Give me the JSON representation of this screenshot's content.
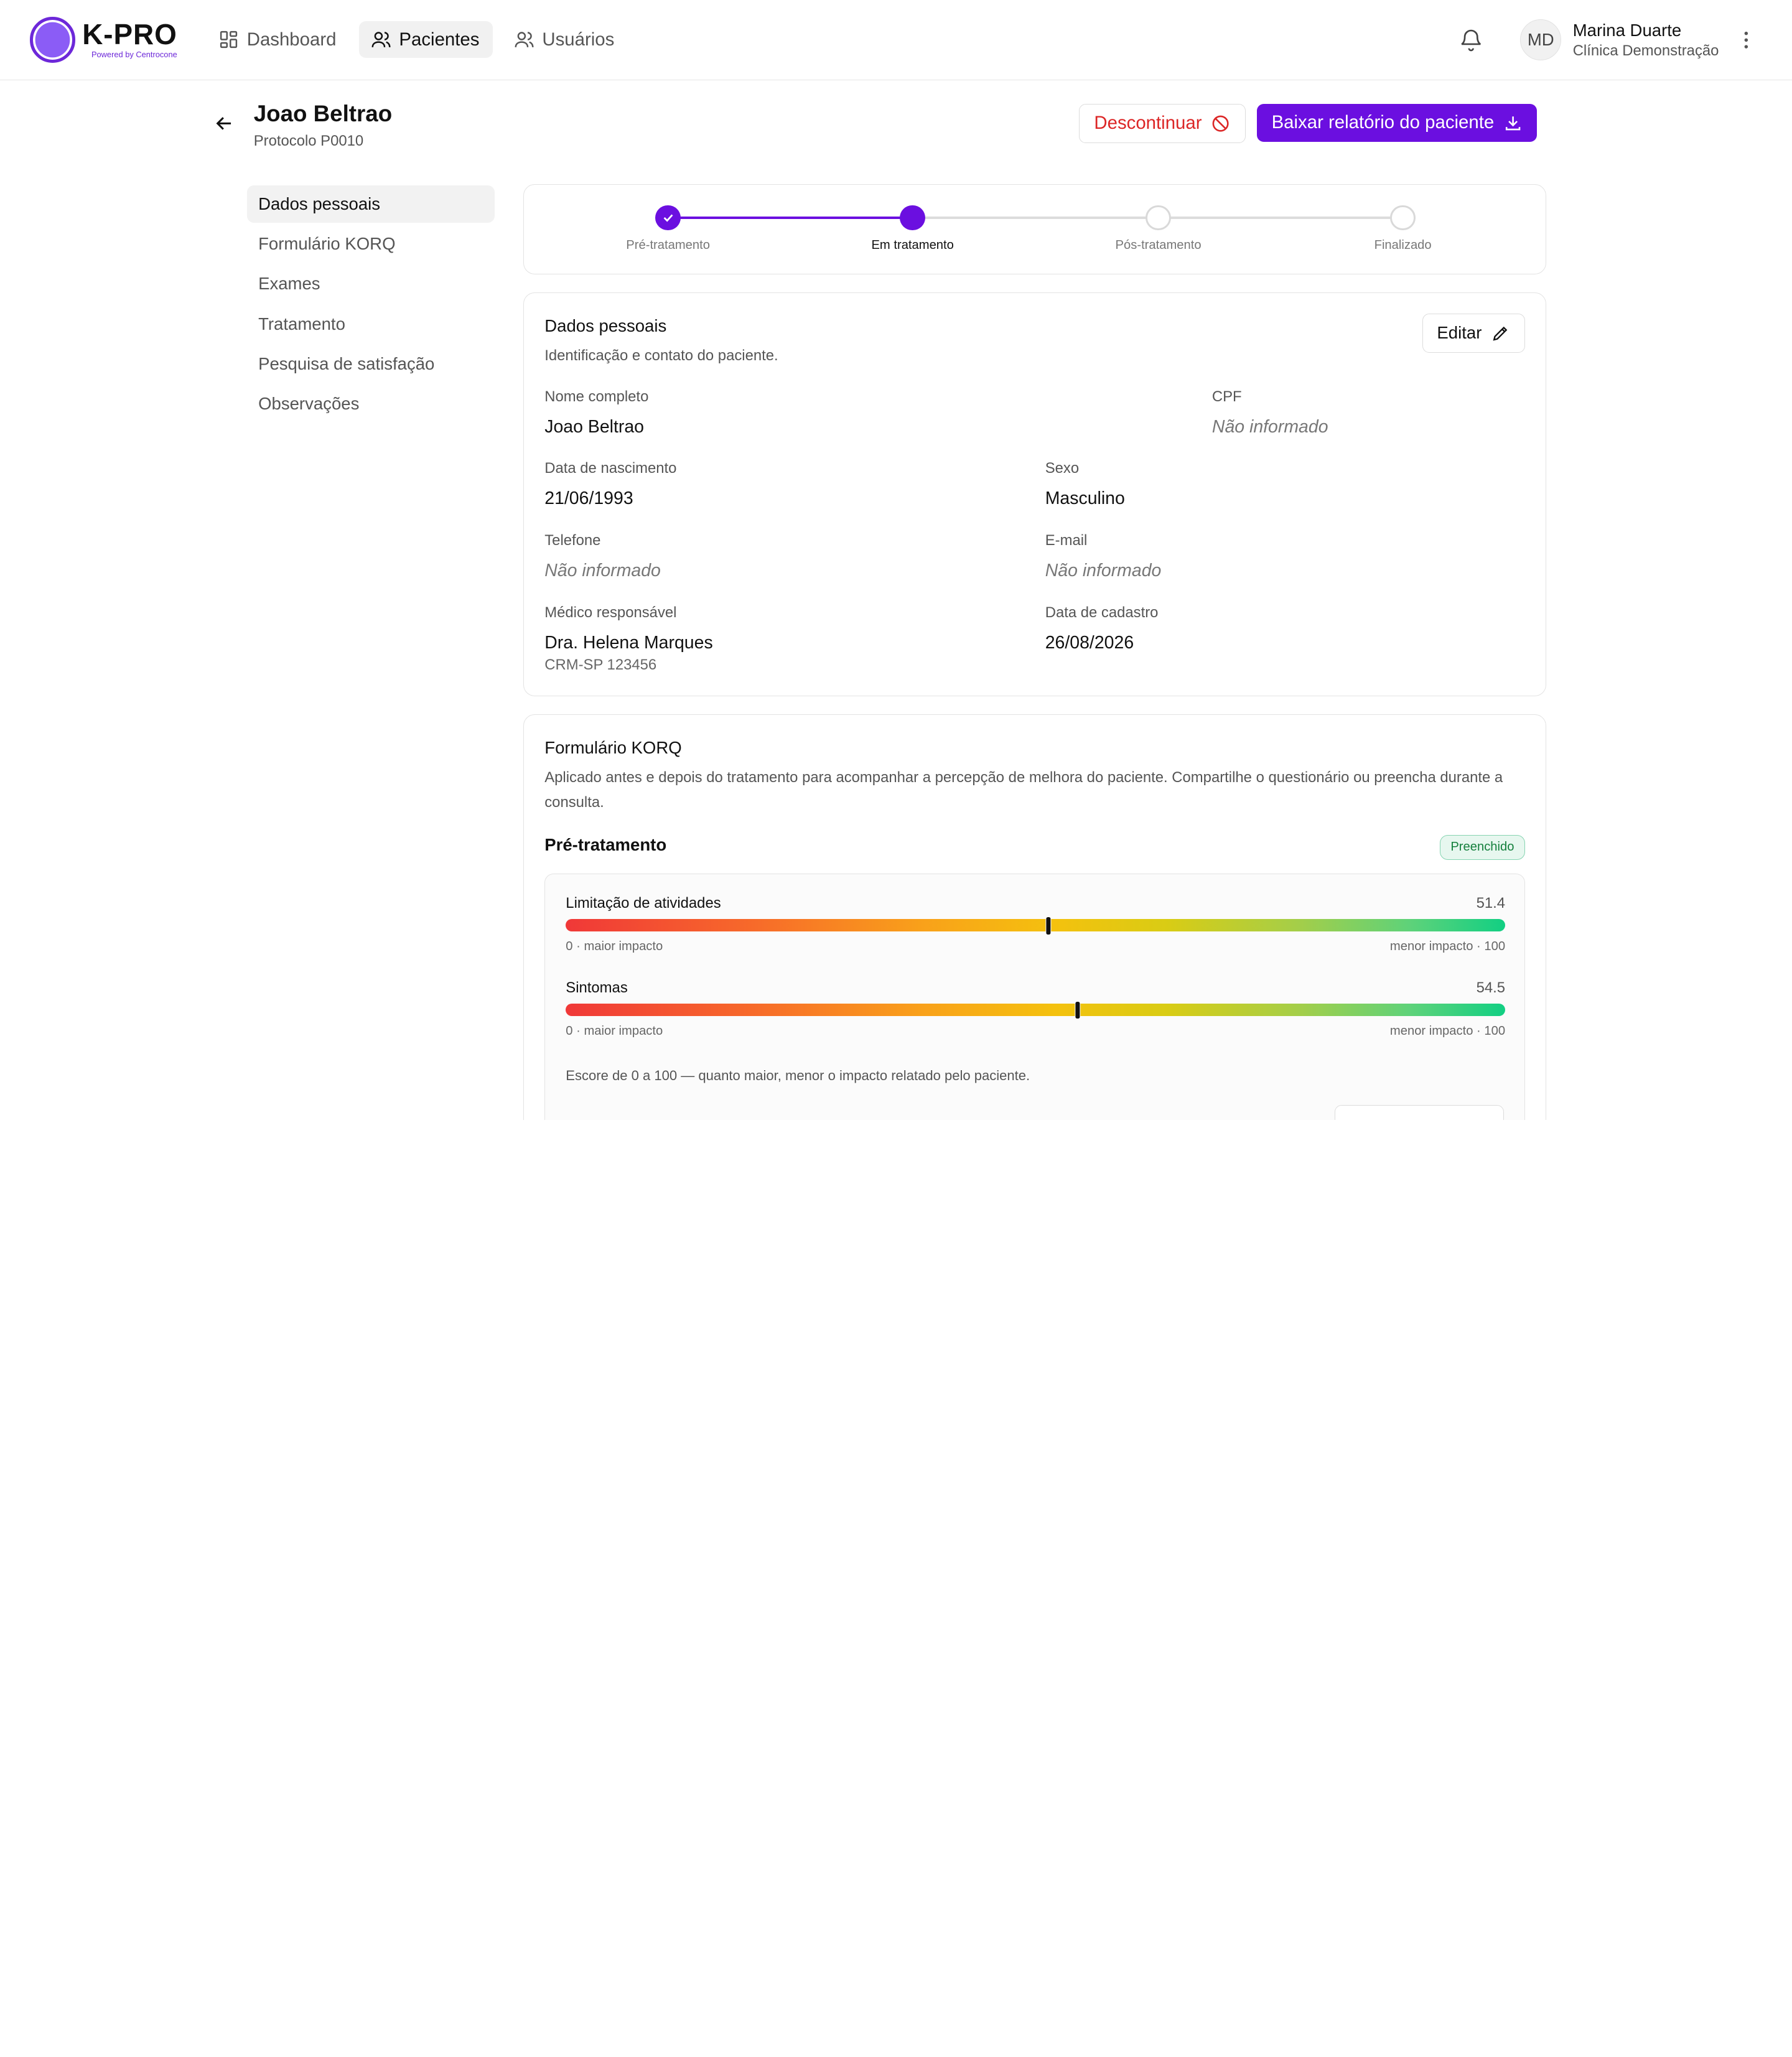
{
  "brand": {
    "name": "K-PRO",
    "powered_by": "Powered by Centrocone",
    "accent": "#6b0fe0"
  },
  "nav": {
    "items": [
      {
        "label": "Dashboard",
        "icon": "dashboard-icon",
        "active": false
      },
      {
        "label": "Pacientes",
        "icon": "users-icon",
        "active": true
      },
      {
        "label": "Usuários",
        "icon": "user-icon",
        "active": false
      }
    ]
  },
  "user": {
    "initials": "MD",
    "name": "Marina Duarte",
    "clinic": "Clínica Demonstração"
  },
  "patient": {
    "name": "Joao Beltrao",
    "protocol": "Protocolo P0010",
    "discontinue_label": "Descontinuar",
    "report_label": "Baixar relatório do paciente"
  },
  "sidebar": {
    "items": [
      {
        "label": "Dados pessoais",
        "active": true
      },
      {
        "label": "Formulário KORQ",
        "active": false
      },
      {
        "label": "Exames",
        "active": false
      },
      {
        "label": "Tratamento",
        "active": false
      },
      {
        "label": "Pesquisa de satisfação",
        "active": false
      },
      {
        "label": "Observações",
        "active": false
      }
    ]
  },
  "stepper": {
    "steps": [
      {
        "label": "Pré-tratamento",
        "state": "done"
      },
      {
        "label": "Em tratamento",
        "state": "current"
      },
      {
        "label": "Pós-tratamento",
        "state": "todo"
      },
      {
        "label": "Finalizado",
        "state": "todo"
      }
    ]
  },
  "personal": {
    "title": "Dados pessoais",
    "description": "Identificação e contato do paciente.",
    "edit_label": "Editar",
    "fields": {
      "full_name": {
        "label": "Nome completo",
        "value": "Joao Beltrao"
      },
      "cpf": {
        "label": "CPF",
        "value": "Não informado"
      },
      "birth": {
        "label": "Data de nascimento",
        "value": "21/06/1993"
      },
      "sex": {
        "label": "Sexo",
        "value": "Masculino"
      },
      "phone": {
        "label": "Telefone",
        "value": "Não informado"
      },
      "email": {
        "label": "E-mail",
        "value": "Não informado"
      },
      "doctor": {
        "label": "Médico responsável",
        "value": "Dra. Helena Marques",
        "sub": "CRM-SP 123456"
      },
      "registered": {
        "label": "Data de cadastro",
        "value": "26/08/2026"
      }
    }
  },
  "korq": {
    "title": "Formulário KORQ",
    "description": "Aplicado antes e depois do tratamento para acompanhar a percepção de melhora do paciente. Compartilhe o questionário ou preencha durante a consulta.",
    "phase_title": "Pré-tratamento",
    "status_badge": "Preenchido",
    "scores": [
      {
        "name": "Limitação de atividades",
        "value": 51.4,
        "display": "51.4",
        "min_label": "0 · maior impacto",
        "max_label": "menor impacto · 100"
      },
      {
        "name": "Sintomas",
        "value": 54.5,
        "display": "54.5",
        "min_label": "0 · maior impacto",
        "max_label": "menor impacto · 100"
      }
    ],
    "note": "Escore de 0 a 100 — quanto maior, menor o impacto relatado pelo paciente."
  }
}
